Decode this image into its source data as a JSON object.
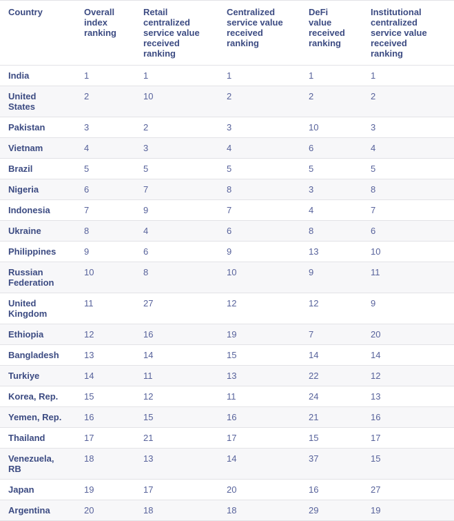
{
  "colors": {
    "header_text": "#3c4b82",
    "value_text": "#57629b",
    "row_stripe": "#f7f7f9",
    "border": "#e2e2e6",
    "background": "#ffffff"
  },
  "chart_data": {
    "type": "table",
    "columns": [
      "Country",
      "Overall\nindex\nranking",
      "Retail\ncentralized\nservice value\nreceived\nranking",
      "Centralized\nservice value\nreceived\nranking",
      "DeFi\nvalue\nreceived\nranking",
      "Institutional\ncentralized\nservice value\nreceived\nranking"
    ],
    "rows": [
      {
        "country": "India",
        "values": [
          1,
          1,
          1,
          1,
          1
        ]
      },
      {
        "country": "United\nStates",
        "values": [
          2,
          10,
          2,
          2,
          2
        ]
      },
      {
        "country": "Pakistan",
        "values": [
          3,
          2,
          3,
          10,
          3
        ]
      },
      {
        "country": "Vietnam",
        "values": [
          4,
          3,
          4,
          6,
          4
        ]
      },
      {
        "country": "Brazil",
        "values": [
          5,
          5,
          5,
          5,
          5
        ]
      },
      {
        "country": "Nigeria",
        "values": [
          6,
          7,
          8,
          3,
          8
        ]
      },
      {
        "country": "Indonesia",
        "values": [
          7,
          9,
          7,
          4,
          7
        ]
      },
      {
        "country": "Ukraine",
        "values": [
          8,
          4,
          6,
          8,
          6
        ]
      },
      {
        "country": "Philippines",
        "values": [
          9,
          6,
          9,
          13,
          10
        ]
      },
      {
        "country": "Russian\nFederation",
        "values": [
          10,
          8,
          10,
          9,
          11
        ]
      },
      {
        "country": "United\nKingdom",
        "values": [
          11,
          27,
          12,
          12,
          9
        ]
      },
      {
        "country": "Ethiopia",
        "values": [
          12,
          16,
          19,
          7,
          20
        ]
      },
      {
        "country": "Bangladesh",
        "values": [
          13,
          14,
          15,
          14,
          14
        ]
      },
      {
        "country": "Turkiye",
        "values": [
          14,
          11,
          13,
          22,
          12
        ]
      },
      {
        "country": "Korea, Rep.",
        "values": [
          15,
          12,
          11,
          24,
          13
        ]
      },
      {
        "country": "Yemen, Rep.",
        "values": [
          16,
          15,
          16,
          21,
          16
        ]
      },
      {
        "country": "Thailand",
        "values": [
          17,
          21,
          17,
          15,
          17
        ]
      },
      {
        "country": "Venezuela,\nRB",
        "values": [
          18,
          13,
          14,
          37,
          15
        ]
      },
      {
        "country": "Japan",
        "values": [
          19,
          17,
          20,
          16,
          27
        ]
      },
      {
        "country": "Argentina",
        "values": [
          20,
          18,
          18,
          29,
          19
        ]
      }
    ]
  }
}
